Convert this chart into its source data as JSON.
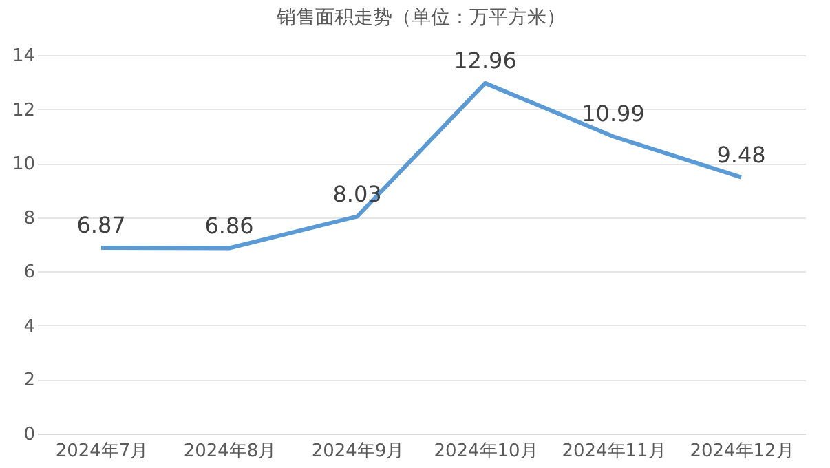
{
  "chart_data": {
    "type": "line",
    "title": "销售面积走势（单位：万平方米）",
    "categories": [
      "2024年7月",
      "2024年8月",
      "2024年9月",
      "2024年10月",
      "2024年11月",
      "2024年12月"
    ],
    "values": [
      6.87,
      6.86,
      8.03,
      12.96,
      10.99,
      9.48
    ],
    "color": "#5b9bd5",
    "ylim": [
      0,
      14
    ],
    "yticks": [
      0,
      2,
      4,
      6,
      8,
      10,
      12,
      14
    ],
    "grid": "y",
    "data_labels": true,
    "line_style": "solid"
  }
}
